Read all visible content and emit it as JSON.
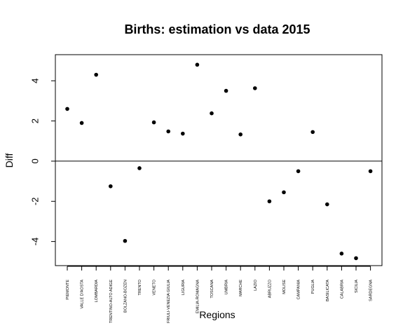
{
  "chart_data": {
    "type": "scatter",
    "title": "Births: estimation vs data 2015",
    "xlabel": "Regions",
    "ylabel": "Diff",
    "ylim": [
      -5.2,
      5.3
    ],
    "yticks": [
      -4,
      -2,
      0,
      2,
      4
    ],
    "ytick_labels": [
      "-4",
      "-2",
      "0",
      "2",
      "4"
    ],
    "reference_line": 0,
    "grid": false,
    "legend": "none",
    "point_color": "#000000",
    "categories": [
      "PIEMONTE",
      "VALLE D'AOSTA",
      "LOMBARDIA",
      "TRENTINO-ALTO ADIGE",
      "BOLZANO-BOZEN",
      "TRENTO",
      "VENETO",
      "FRIULI-VENEZIA GIULIA",
      "LIGURIA",
      "EMILIA-ROMAGNA",
      "TOSCANA",
      "UMBRIA",
      "MARCHE",
      "LAZIO",
      "ABRUZZO",
      "MOLISE",
      "CAMPANIA",
      "PUGLIA",
      "BASILICATA",
      "CALABRIA",
      "SICILIA",
      "SARDEGNA"
    ],
    "values": [
      2.6,
      1.9,
      4.3,
      -1.25,
      -3.97,
      -0.35,
      1.93,
      1.48,
      1.37,
      4.8,
      2.38,
      3.5,
      1.33,
      3.63,
      -2.0,
      -1.55,
      -0.5,
      1.45,
      -2.15,
      -4.6,
      -4.83,
      -0.5
    ]
  }
}
